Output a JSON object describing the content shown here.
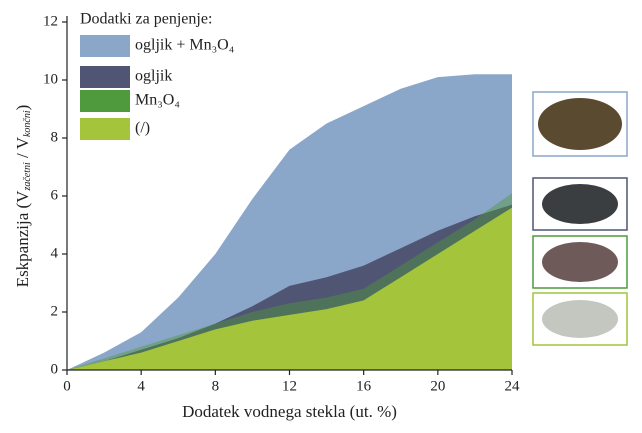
{
  "chart_data": {
    "type": "area",
    "legend_title": "Dodatki za penjenje:",
    "x_label": "Dodatek vodnega stekla (ut. %)",
    "y_label_parts": [
      "Eskpanzija (V",
      "začetni",
      " / V",
      "končni",
      ")"
    ],
    "x": [
      0,
      2,
      4,
      6,
      8,
      10,
      12,
      14,
      16,
      18,
      20,
      22,
      24
    ],
    "series": [
      {
        "name": "ogljik + Mn₃O₄",
        "color": "#8aa6c8",
        "values": [
          0,
          0.6,
          1.3,
          2.5,
          4.0,
          5.9,
          7.6,
          8.5,
          9.1,
          9.7,
          10.1,
          10.2,
          10.2
        ]
      },
      {
        "name": "ogljik",
        "color": "#4f5573",
        "values": [
          0,
          0.3,
          0.7,
          1.1,
          1.6,
          2.2,
          2.9,
          3.2,
          3.6,
          4.2,
          4.8,
          5.3,
          5.7
        ]
      },
      {
        "name": "Mn₃O₄",
        "color": "#4f9a3c",
        "values": [
          0,
          0.4,
          0.8,
          1.2,
          1.6,
          2.0,
          2.3,
          2.5,
          2.8,
          3.6,
          4.4,
          5.2,
          6.1
        ]
      },
      {
        "name": "(/)",
        "color": "#a4c43c",
        "values": [
          0,
          0.3,
          0.6,
          1.0,
          1.4,
          1.7,
          1.9,
          2.1,
          2.4,
          3.2,
          4.0,
          4.8,
          5.6
        ]
      }
    ],
    "xlim": [
      0,
      24
    ],
    "xticks": [
      0,
      4,
      8,
      12,
      16,
      20,
      24
    ],
    "ylim": [
      0,
      12
    ],
    "yticks": [
      0,
      2,
      4,
      6,
      8,
      10,
      12
    ]
  }
}
